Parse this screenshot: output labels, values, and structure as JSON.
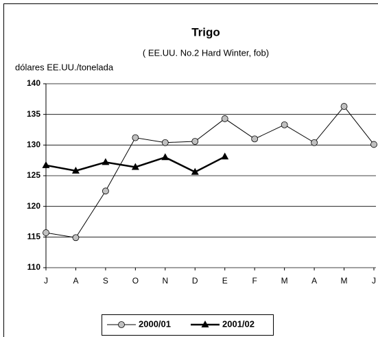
{
  "chart_data": {
    "type": "line",
    "title": "Trigo",
    "subtitle": "( EE.UU. No.2 Hard Winter, fob)",
    "y_label": "dólares EE.UU./tonelada",
    "categories": [
      "J",
      "A",
      "S",
      "O",
      "N",
      "D",
      "E",
      "F",
      "M",
      "A",
      "M",
      "J"
    ],
    "series": [
      {
        "name": "2000/01",
        "color": "#c0c0c0",
        "marker": "circle",
        "values": [
          115.7,
          114.9,
          122.5,
          131.2,
          130.4,
          130.6,
          134.3,
          131.0,
          133.3,
          130.4,
          136.3,
          130.1
        ]
      },
      {
        "name": "2001/02",
        "color": "#000000",
        "marker": "triangle",
        "values": [
          126.7,
          125.8,
          127.2,
          126.4,
          128.0,
          125.6,
          128.1,
          null,
          null,
          null,
          null,
          null
        ]
      }
    ],
    "ylim": [
      110,
      140
    ],
    "yticks": [
      110,
      115,
      120,
      125,
      130,
      135,
      140
    ],
    "grid": true,
    "legend": "bottom"
  }
}
